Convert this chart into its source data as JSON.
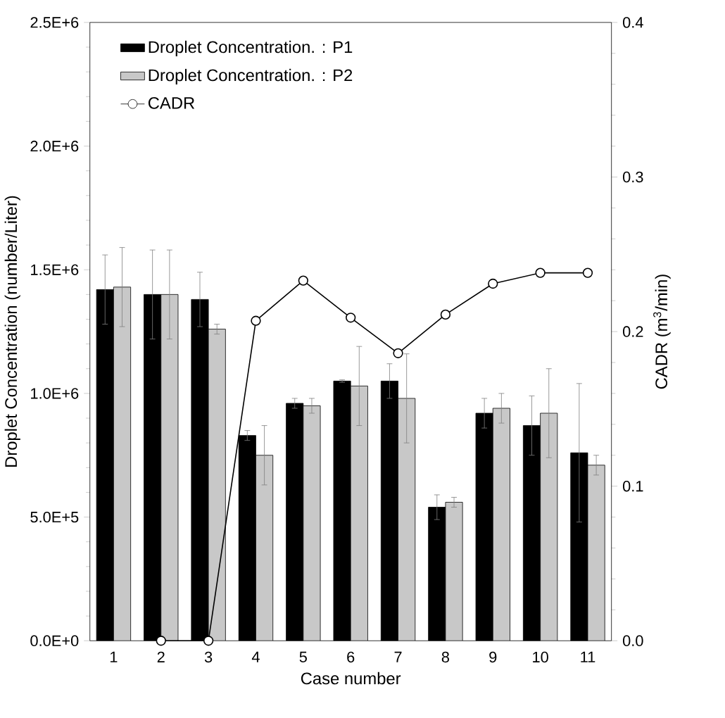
{
  "chart_data": {
    "type": "bar",
    "xlabel": "Case number",
    "ylabel": "Droplet  Concentration (number/Liter)",
    "y2label": "CADR (m$^{3}$/min)",
    "categories": [
      "1",
      "2",
      "3",
      "4",
      "5",
      "6",
      "7",
      "8",
      "9",
      "10",
      "11"
    ],
    "series": [
      {
        "name": "Droplet Concentration. : P1",
        "color": "#000000",
        "values": [
          1420000,
          1400000,
          1380000,
          830000,
          960000,
          1050000,
          1050000,
          540000,
          920000,
          870000,
          760000
        ],
        "errors": [
          140000,
          180000,
          110000,
          20000,
          20000,
          5000,
          70000,
          50000,
          60000,
          120000,
          280000
        ]
      },
      {
        "name": "Droplet Concentration. : P2",
        "color": "#c8c8c8",
        "values": [
          1430000,
          1400000,
          1260000,
          750000,
          950000,
          1030000,
          980000,
          560000,
          940000,
          920000,
          710000
        ],
        "errors": [
          160000,
          180000,
          20000,
          120000,
          30000,
          160000,
          180000,
          20000,
          60000,
          180000,
          40000
        ]
      },
      {
        "name": "CADR",
        "type": "line",
        "axis": "y2",
        "color": "#000000",
        "marker": "circle",
        "values": [
          null,
          0,
          0,
          0.207,
          0.233,
          0.209,
          0.186,
          0.211,
          0.231,
          0.238,
          0.238
        ]
      }
    ],
    "ylim": [
      0,
      2500000
    ],
    "yticks": [
      {
        "value": 0,
        "label": "0.0E+0"
      },
      {
        "value": 500000,
        "label": "5.0E+5"
      },
      {
        "value": 1000000,
        "label": "1.0E+6"
      },
      {
        "value": 1500000,
        "label": "1.5E+6"
      },
      {
        "value": 2000000,
        "label": "2.0E+6"
      },
      {
        "value": 2500000,
        "label": "2.5E+6"
      }
    ],
    "y2lim": [
      0,
      0.4
    ],
    "y2ticks": [
      {
        "value": 0,
        "label": "0.0"
      },
      {
        "value": 0.1,
        "label": "0.1"
      },
      {
        "value": 0.2,
        "label": "0.2"
      },
      {
        "value": 0.3,
        "label": "0.3"
      },
      {
        "value": 0.4,
        "label": "0.4"
      }
    ],
    "legend": "top",
    "grid": false
  }
}
